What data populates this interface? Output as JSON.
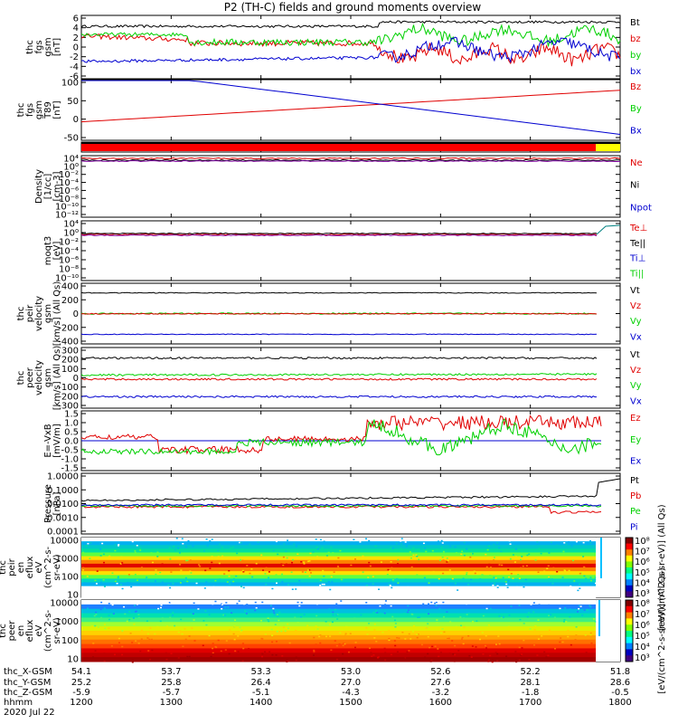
{
  "title": "P2 (TH-C) fields and ground moments overview",
  "date_label": "2020 Jul 22",
  "colors": {
    "black": "#000000",
    "red": "#e00000",
    "green": "#00d000",
    "blue": "#0000d0"
  },
  "chart_data": [
    {
      "type": "line",
      "name": "fgs",
      "ylabel": [
        "thc",
        "fgs",
        "gsm",
        "[nT]"
      ],
      "yticks": [
        "6",
        "4",
        "2",
        "0",
        "-2",
        "-4",
        "-6"
      ],
      "legend": [
        "Bt",
        "bz",
        "by",
        "bx"
      ]
    },
    {
      "type": "line",
      "name": "fgs-model",
      "ylabel": [
        "thc",
        "fgs",
        "gsm",
        "T89",
        "[nT]"
      ],
      "yticks": [
        "100",
        "50",
        "0",
        "-50"
      ],
      "legend": [
        "Bz",
        "By",
        "Bx"
      ]
    },
    {
      "type": "bar",
      "name": "mode-bar"
    },
    {
      "type": "line",
      "name": "density",
      "ylabel": [
        "Density",
        "[1/cc]",
        "[cm-3]"
      ],
      "yticks": [
        "10⁴",
        "10⁰",
        "10⁻²",
        "10⁻⁴",
        "10⁻⁶",
        "10⁻⁸",
        "10⁻¹⁰",
        "10⁻¹²"
      ],
      "legend": [
        "Ne",
        "Ni",
        "Npot"
      ]
    },
    {
      "type": "line",
      "name": "temperature",
      "ylabel": [
        "moqt3",
        "[eV]"
      ],
      "yticks": [
        "10⁴",
        "10⁰",
        "10⁻²",
        "10⁻⁴",
        "10⁻⁶",
        "10⁻⁸",
        "10⁻¹⁰"
      ],
      "legend": [
        "Te⊥",
        "Te||",
        "Ti⊥",
        "Ti||"
      ]
    },
    {
      "type": "line",
      "name": "velocity-1",
      "ylabel": [
        "thc",
        "peir",
        "velocity",
        "gsm",
        "[km/s] (All Qs)"
      ],
      "yticks": [
        "400",
        "200",
        "0",
        "-200",
        "-400"
      ],
      "legend": [
        "Vt",
        "Vz",
        "Vy",
        "Vx"
      ]
    },
    {
      "type": "line",
      "name": "velocity-2",
      "ylabel": [
        "thc",
        "peer",
        "velocity",
        "gsm",
        "[km/s] (All Qs)"
      ],
      "yticks": [
        "300",
        "200",
        "100",
        "0",
        "-100",
        "-200",
        "-300"
      ],
      "legend": [
        "Vt",
        "Vz",
        "Vy",
        "Vx"
      ]
    },
    {
      "type": "line",
      "name": "efield",
      "ylabel": [
        "E=-VxB",
        "[mV/m]"
      ],
      "yticks": [
        "1.5",
        "1.0",
        "0.5",
        "0.0",
        "-0.5",
        "-1.0",
        "-1.5"
      ],
      "legend": [
        "Ez",
        "Ey",
        "Ex"
      ]
    },
    {
      "type": "line",
      "name": "pressure",
      "ylabel": [
        "Pressure",
        "[nPa]"
      ],
      "yticks": [
        "1.0000",
        "0.1000",
        "0.0100",
        "0.0010",
        "0.0001"
      ],
      "legend": [
        "Pt",
        "Pb",
        "Pe",
        "Pi"
      ]
    },
    {
      "type": "heatmap",
      "name": "ion-spectrum",
      "ylabel": [
        "thc",
        "peir",
        "en",
        "eflux",
        "eV",
        "(cm^2-s-",
        "sr-eV)"
      ],
      "yticks": [
        "10000",
        "1000",
        "100",
        "10"
      ]
    },
    {
      "type": "heatmap",
      "name": "electron-spectrum",
      "ylabel": [
        "thc",
        "peer",
        "en",
        "eflux",
        "eV",
        "(cm^2-s-",
        "sr-eV)"
      ],
      "yticks": [
        "10000",
        "1000",
        "100",
        "10"
      ]
    }
  ],
  "colorbar": {
    "label1": "[eV/(cm^2-s-sr-eV)] (All Qs)",
    "label2": "[eV/(cm^2-s-sr-eV)] (All Qs)",
    "ticks1": [
      "10⁸",
      "10⁷",
      "10⁶",
      "10⁵",
      "10⁴",
      "10³"
    ],
    "ticks2": [
      "10⁸",
      "10⁷",
      "10⁶",
      "10⁵",
      "10⁴",
      "10³"
    ]
  },
  "xaxis": {
    "row_labels": [
      "thc_X-GSM",
      "thc_Y-GSM",
      "thc_Z-GSM",
      "hhmm"
    ],
    "rows": [
      [
        "54.1",
        "53.7",
        "53.3",
        "53.0",
        "52.6",
        "52.2",
        "51.8"
      ],
      [
        "25.2",
        "25.8",
        "26.4",
        "27.0",
        "27.6",
        "28.1",
        "28.6"
      ],
      [
        "-5.9",
        "-5.7",
        "-5.1",
        "-4.3",
        "-3.2",
        "-1.8",
        "-0.5"
      ],
      [
        "1200",
        "1300",
        "1400",
        "1500",
        "1600",
        "1700",
        "1800"
      ]
    ]
  }
}
